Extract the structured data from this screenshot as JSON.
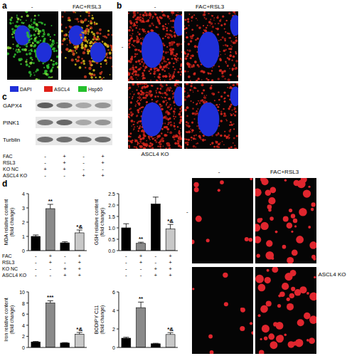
{
  "figure": {
    "panel_labels": [
      "a",
      "b",
      "c",
      "d"
    ],
    "panel_a": {
      "columns": [
        "-",
        "FAC+RSL3"
      ]
    },
    "panel_b": {
      "columns": [
        "-",
        "FAC+RSL3"
      ],
      "rows": [
        "-",
        "ASCL4 KO"
      ]
    },
    "stain_legend": [
      {
        "name": "DAPI",
        "color": "#1f2fd8"
      },
      {
        "name": "ASCL4",
        "color": "#e02018"
      },
      {
        "name": "Hsp60",
        "color": "#24c02c"
      }
    ],
    "blot": {
      "rows": [
        "GAPX4",
        "PINK1",
        "Turblin"
      ],
      "treatments": [
        {
          "label": "FAC",
          "signs": [
            "-",
            "+",
            "-",
            "+"
          ]
        },
        {
          "label": "RSL3",
          "signs": [
            "-",
            "+",
            "-",
            "+"
          ]
        },
        {
          "label": "KO NC",
          "signs": [
            "+",
            "+",
            "-",
            "-"
          ]
        },
        {
          "label": "ASCL4 KO",
          "signs": [
            "-",
            "-",
            "+",
            "+"
          ]
        }
      ]
    },
    "panel_d_images": {
      "columns": [
        "-",
        "FAC+RSL3"
      ],
      "rows": [
        "-",
        "ASCL4 KO"
      ]
    }
  },
  "chart_data": [
    {
      "type": "bar",
      "ylabel": "MDA relative content (fold change)",
      "categories": [
        null,
        null,
        null,
        null
      ],
      "values": [
        1.0,
        2.95,
        0.55,
        1.25
      ],
      "errors": [
        0.1,
        0.3,
        0.08,
        0.2
      ],
      "colors": [
        "#000000",
        "#8a8a8a",
        "#000000",
        "#c8c8c8"
      ],
      "annotations": [
        null,
        "**",
        null,
        "*&"
      ],
      "ylim": [
        0,
        4
      ],
      "yticks": [
        0,
        1,
        2,
        3,
        4
      ],
      "treatments": [
        {
          "label": "FAC",
          "signs": [
            "-",
            "+",
            "-",
            "+"
          ]
        },
        {
          "label": "RSL3",
          "signs": [
            "-",
            "+",
            "-",
            "+"
          ]
        },
        {
          "label": "KO NC",
          "signs": [
            "-",
            "-",
            "+",
            "+"
          ]
        },
        {
          "label": "ASCL4 KO",
          "signs": [
            "-",
            "-",
            "+",
            "+"
          ]
        }
      ]
    },
    {
      "type": "bar",
      "ylabel": "GSH relative content (fold change)",
      "categories": [
        null,
        null,
        null,
        null
      ],
      "values": [
        1.0,
        0.32,
        2.05,
        0.95
      ],
      "errors": [
        0.18,
        0.05,
        0.3,
        0.2
      ],
      "colors": [
        "#000000",
        "#8a8a8a",
        "#000000",
        "#c8c8c8"
      ],
      "annotations": [
        null,
        "**",
        null,
        "*&"
      ],
      "ylim": [
        0,
        2.5
      ],
      "yticks": [
        {
          "value": 0,
          "label": "0.0"
        },
        {
          "value": 0.5,
          "label": "0.5"
        },
        {
          "value": 1,
          "label": "1.0"
        },
        {
          "value": 1.5,
          "label": "1.5"
        },
        {
          "value": 2,
          "label": "2.0"
        },
        {
          "value": 2.5,
          "label": "2.5"
        }
      ],
      "treatments": [
        {
          "signs": [
            "-",
            "+",
            "-",
            "+"
          ]
        },
        {
          "signs": [
            "-",
            "+",
            "-",
            "+"
          ]
        },
        {
          "signs": [
            "-",
            "-",
            "+",
            "+"
          ]
        },
        {
          "signs": [
            "-",
            "-",
            "+",
            "+"
          ]
        }
      ]
    },
    {
      "type": "bar",
      "ylabel": "Iron relative content (fold change)",
      "categories": [
        null,
        null,
        null,
        null
      ],
      "values": [
        1.0,
        8.0,
        0.8,
        2.4
      ],
      "errors": [
        0.08,
        0.4,
        0.08,
        0.3
      ],
      "colors": [
        "#000000",
        "#8a8a8a",
        "#000000",
        "#c8c8c8"
      ],
      "annotations": [
        null,
        "***",
        null,
        "*&"
      ],
      "ylim": [
        0,
        10
      ],
      "yticks": [
        0,
        2,
        4,
        6,
        8,
        10
      ]
    },
    {
      "type": "bar",
      "ylabel": "BODIPY C11 (fold change)",
      "categories": [
        null,
        null,
        null,
        null
      ],
      "values": [
        1.0,
        4.3,
        0.4,
        1.4
      ],
      "errors": [
        0.1,
        0.6,
        0.05,
        0.2
      ],
      "colors": [
        "#000000",
        "#8a8a8a",
        "#000000",
        "#c8c8c8"
      ],
      "annotations": [
        null,
        "**",
        null,
        "*&"
      ],
      "ylim": [
        0,
        6
      ],
      "yticks": [
        0,
        2,
        4,
        6
      ]
    }
  ]
}
